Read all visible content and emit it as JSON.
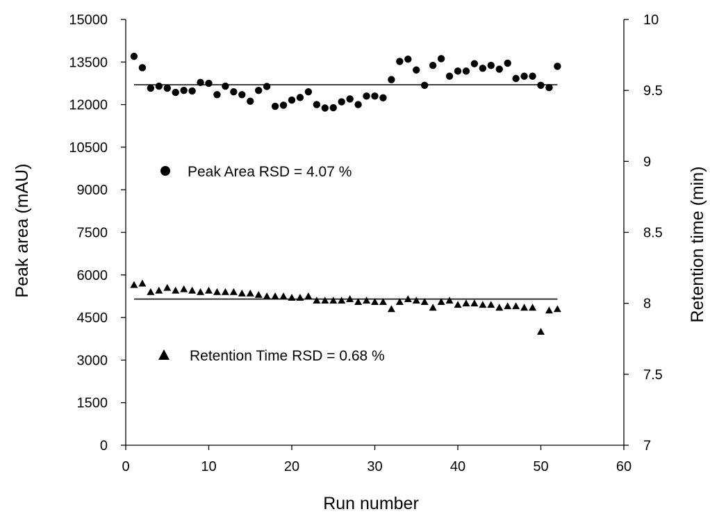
{
  "chart_data": {
    "type": "scatter",
    "x_axis": {
      "label": "Run number",
      "range": [
        0,
        60
      ],
      "ticks": [
        "0",
        "10",
        "20",
        "30",
        "40",
        "50",
        "60"
      ]
    },
    "y_axis_left": {
      "label": "Peak area (mAU)",
      "range": [
        0,
        15000
      ],
      "ticks": [
        "0",
        "1500",
        "3000",
        "4500",
        "6000",
        "7500",
        "9000",
        "10500",
        "12000",
        "13500",
        "15000"
      ]
    },
    "y_axis_right": {
      "label": "Retention time (min)",
      "range": [
        7,
        10
      ],
      "ticks": [
        "7",
        "7.5",
        "8",
        "8.5",
        "9",
        "9.5",
        "10"
      ]
    },
    "grid": false,
    "series": [
      {
        "name": "Peak Area RSD = 4.07 %",
        "axis": "left",
        "marker": "circle",
        "color": "#000000",
        "mean": 12700,
        "x": [
          1,
          2,
          3,
          4,
          5,
          6,
          7,
          8,
          9,
          10,
          11,
          12,
          13,
          14,
          15,
          16,
          17,
          18,
          19,
          20,
          21,
          22,
          23,
          24,
          25,
          26,
          27,
          28,
          29,
          30,
          31,
          32,
          33,
          34,
          35,
          36,
          37,
          38,
          39,
          40,
          41,
          42,
          43,
          44,
          45,
          46,
          47,
          48,
          49,
          50,
          51,
          52
        ],
        "y": [
          13700,
          13300,
          12580,
          12650,
          12580,
          12430,
          12500,
          12480,
          12780,
          12750,
          12350,
          12650,
          12450,
          12350,
          12120,
          12500,
          12640,
          11940,
          11980,
          12160,
          12250,
          12450,
          12000,
          11880,
          11890,
          12100,
          12200,
          12000,
          12300,
          12300,
          12240,
          12880,
          13520,
          13600,
          13220,
          12680,
          13380,
          13620,
          13000,
          13180,
          13180,
          13440,
          13280,
          13380,
          13250,
          13460,
          12920,
          13000,
          13000,
          12680,
          12600,
          13350
        ]
      },
      {
        "name": "Retention Time RSD = 0.68 %",
        "axis": "right",
        "marker": "triangle",
        "color": "#000000",
        "mean": 8.03,
        "x": [
          1,
          2,
          3,
          4,
          5,
          6,
          7,
          8,
          9,
          10,
          11,
          12,
          13,
          14,
          15,
          16,
          17,
          18,
          19,
          20,
          21,
          22,
          23,
          24,
          25,
          26,
          27,
          28,
          29,
          30,
          31,
          32,
          33,
          34,
          35,
          36,
          37,
          38,
          39,
          40,
          41,
          42,
          43,
          44,
          45,
          46,
          47,
          48,
          49,
          50,
          51,
          52
        ],
        "y": [
          8.13,
          8.14,
          8.08,
          8.09,
          8.11,
          8.09,
          8.1,
          8.09,
          8.08,
          8.09,
          8.08,
          8.08,
          8.08,
          8.07,
          8.07,
          8.06,
          8.05,
          8.05,
          8.05,
          8.04,
          8.04,
          8.05,
          8.02,
          8.02,
          8.02,
          8.02,
          8.03,
          8.01,
          8.02,
          8.01,
          8.01,
          7.96,
          8.01,
          8.03,
          8.02,
          8.01,
          7.97,
          8.01,
          8.02,
          7.99,
          8.0,
          8.0,
          7.99,
          7.99,
          7.97,
          7.98,
          7.98,
          7.97,
          7.97,
          7.8,
          7.95,
          7.96
        ]
      }
    ],
    "legend_placement": "inside-left"
  }
}
